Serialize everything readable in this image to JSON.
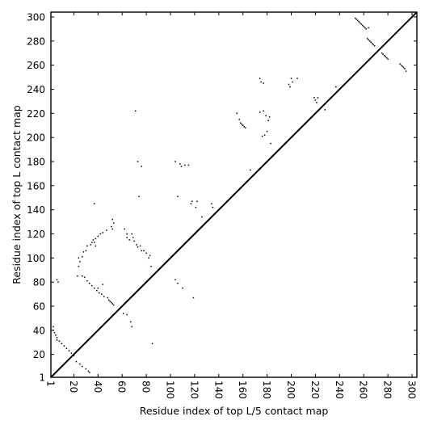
{
  "chart_data": {
    "type": "heatmap",
    "subtype": "contact-map",
    "title": "",
    "xlabel": "Residue index of top L/5 contact map",
    "ylabel": "Residue index of top L contact map",
    "xlim": [
      1,
      304
    ],
    "ylim": [
      1,
      304
    ],
    "xticks": [
      1,
      20,
      40,
      60,
      80,
      100,
      120,
      140,
      160,
      180,
      200,
      220,
      240,
      260,
      280,
      300
    ],
    "yticks": [
      1,
      20,
      40,
      60,
      80,
      100,
      120,
      140,
      160,
      180,
      200,
      220,
      240,
      260,
      280,
      300
    ],
    "xtick_rotation": -90,
    "diagonal_line": true,
    "grid": false,
    "cell_color": "#000000",
    "background_color": "#ffffff",
    "upper_triangle_contacts": [
      [
        253,
        299
      ],
      [
        254,
        298
      ],
      [
        255,
        297
      ],
      [
        256,
        296
      ],
      [
        257,
        295
      ],
      [
        258,
        294
      ],
      [
        259,
        293
      ],
      [
        260,
        292
      ],
      [
        261,
        291
      ],
      [
        264,
        291
      ],
      [
        262,
        290
      ],
      [
        263,
        282
      ],
      [
        264,
        281
      ],
      [
        265,
        280
      ],
      [
        266,
        279
      ],
      [
        267,
        278
      ],
      [
        268,
        277
      ],
      [
        269,
        276
      ],
      [
        275,
        270
      ],
      [
        276,
        269
      ],
      [
        277,
        268
      ],
      [
        278,
        267
      ],
      [
        279,
        266
      ],
      [
        280,
        265
      ],
      [
        290,
        261
      ],
      [
        291,
        260
      ],
      [
        292,
        259
      ],
      [
        293,
        258
      ],
      [
        294,
        257
      ],
      [
        295,
        255
      ],
      [
        174,
        249
      ],
      [
        175,
        246
      ],
      [
        177,
        245
      ],
      [
        200,
        249
      ],
      [
        201,
        246
      ],
      [
        205,
        249
      ],
      [
        198,
        244
      ],
      [
        199,
        242
      ],
      [
        219,
        233
      ],
      [
        220,
        231
      ],
      [
        221,
        229
      ],
      [
        222,
        233
      ],
      [
        228,
        223
      ],
      [
        237,
        242
      ],
      [
        155,
        220
      ],
      [
        157,
        215
      ],
      [
        158,
        212
      ],
      [
        159,
        211
      ],
      [
        160,
        210
      ],
      [
        161,
        209
      ],
      [
        162,
        208
      ],
      [
        174,
        221
      ],
      [
        177,
        222
      ],
      [
        179,
        218
      ],
      [
        182,
        217
      ],
      [
        181,
        214
      ],
      [
        180,
        205
      ],
      [
        178,
        202
      ],
      [
        176,
        201
      ],
      [
        183,
        195
      ],
      [
        166,
        173
      ],
      [
        71,
        222
      ],
      [
        73,
        180
      ],
      [
        76,
        176
      ],
      [
        104,
        180
      ],
      [
        108,
        178
      ],
      [
        112,
        177
      ],
      [
        115,
        177
      ],
      [
        109,
        176
      ],
      [
        106,
        151
      ],
      [
        74,
        151
      ],
      [
        117,
        145
      ],
      [
        118,
        147
      ],
      [
        121,
        142
      ],
      [
        122,
        147
      ],
      [
        126,
        134
      ],
      [
        134,
        145
      ],
      [
        135,
        142
      ],
      [
        37,
        145
      ],
      [
        52,
        132
      ],
      [
        53,
        129
      ],
      [
        51,
        126
      ],
      [
        52,
        124
      ],
      [
        47,
        123
      ],
      [
        44,
        121
      ],
      [
        36,
        115
      ],
      [
        38,
        116
      ],
      [
        35,
        113
      ],
      [
        34,
        111
      ],
      [
        31,
        110
      ],
      [
        30,
        106
      ],
      [
        28,
        105
      ],
      [
        27,
        101
      ],
      [
        24,
        100
      ],
      [
        25,
        97
      ],
      [
        24,
        93
      ],
      [
        37,
        113
      ],
      [
        38,
        110
      ],
      [
        40,
        118
      ],
      [
        42,
        120
      ],
      [
        62,
        124
      ],
      [
        64,
        120
      ],
      [
        64,
        117
      ],
      [
        66,
        115
      ],
      [
        68,
        120
      ],
      [
        69,
        117
      ],
      [
        70,
        114
      ],
      [
        72,
        111
      ],
      [
        73,
        109
      ],
      [
        75,
        110
      ],
      [
        76,
        106
      ],
      [
        78,
        106
      ],
      [
        80,
        104
      ],
      [
        82,
        100
      ],
      [
        83,
        102
      ],
      [
        84,
        93
      ],
      [
        23,
        85
      ],
      [
        27,
        85
      ],
      [
        29,
        84
      ],
      [
        31,
        81
      ],
      [
        33,
        79
      ],
      [
        35,
        77
      ],
      [
        37,
        75
      ],
      [
        39,
        73
      ],
      [
        40,
        75
      ],
      [
        41,
        71
      ],
      [
        43,
        70
      ],
      [
        44,
        78
      ],
      [
        45,
        68
      ],
      [
        48,
        67
      ],
      [
        49,
        65
      ],
      [
        50,
        64
      ],
      [
        51,
        63
      ],
      [
        52,
        62
      ],
      [
        53,
        61
      ],
      [
        61,
        54
      ],
      [
        64,
        53
      ],
      [
        67,
        47
      ],
      [
        68,
        43
      ],
      [
        6,
        82
      ],
      [
        7,
        80
      ],
      [
        104,
        82
      ],
      [
        106,
        79
      ],
      [
        110,
        75
      ],
      [
        119,
        67
      ],
      [
        85,
        29
      ]
    ],
    "lower_triangle_contacts": [
      [
        3,
        43
      ],
      [
        3,
        40
      ],
      [
        4,
        38
      ],
      [
        5,
        36
      ],
      [
        6,
        34
      ],
      [
        6,
        32
      ],
      [
        8,
        31
      ],
      [
        10,
        29
      ],
      [
        12,
        27
      ],
      [
        14,
        25
      ],
      [
        16,
        23
      ],
      [
        18,
        21
      ],
      [
        20,
        19
      ],
      [
        22,
        14
      ],
      [
        25,
        12
      ],
      [
        27,
        10
      ],
      [
        30,
        8
      ],
      [
        32,
        6
      ],
      [
        33,
        5
      ]
    ]
  }
}
